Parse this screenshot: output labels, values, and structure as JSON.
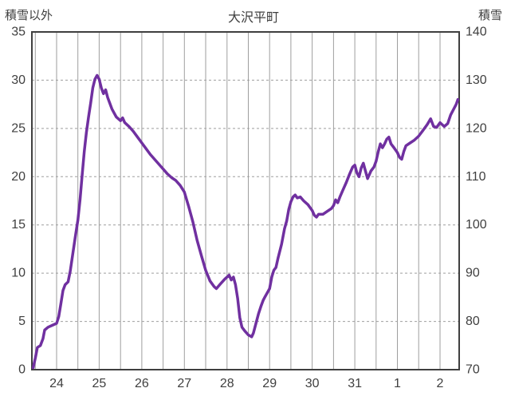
{
  "header": {
    "left_axis_title": "積雪以外",
    "chart_title": "大沢平町",
    "right_axis_title": "積雪"
  },
  "chart_data": {
    "type": "line",
    "title": "大沢平町",
    "legend": "none",
    "grid": {
      "vertical": "solid",
      "horizontal": "dashed"
    },
    "colors": {
      "line": "#7030A0",
      "grid": "#9e9e9e",
      "border": "#3f3f3f",
      "text": "#3f3f3f"
    },
    "left_axis": {
      "label": "積雪以外",
      "min": 0,
      "max": 35,
      "ticks": [
        0,
        5,
        10,
        15,
        20,
        25,
        30,
        35
      ]
    },
    "right_axis": {
      "label": "積雪",
      "min": 70,
      "max": 140,
      "ticks": [
        70,
        80,
        90,
        100,
        110,
        120,
        130,
        140
      ]
    },
    "x_axis": {
      "tick_labels": [
        "24",
        "25",
        "26",
        "27",
        "28",
        "29",
        "30",
        "31",
        "1",
        "2"
      ],
      "tick_positions": [
        24,
        25,
        26,
        27,
        28,
        29,
        30,
        31,
        32,
        33
      ],
      "min": 23.42,
      "max": 33.45,
      "minor_grid_step": 0.5
    },
    "series": [
      {
        "name": "積雪",
        "color": "#7030A0",
        "axis": "left",
        "x": [
          23.45,
          23.5,
          23.55,
          23.62,
          23.68,
          23.72,
          23.8,
          23.9,
          24.0,
          24.05,
          24.1,
          24.15,
          24.2,
          24.27,
          24.32,
          24.38,
          24.44,
          24.5,
          24.55,
          24.6,
          24.65,
          24.7,
          24.75,
          24.8,
          24.85,
          24.9,
          24.95,
          25.0,
          25.05,
          25.1,
          25.15,
          25.2,
          25.3,
          25.4,
          25.5,
          25.55,
          25.6,
          25.7,
          25.8,
          25.9,
          26.0,
          26.1,
          26.2,
          26.3,
          26.4,
          26.5,
          26.6,
          26.7,
          26.8,
          26.9,
          27.0,
          27.1,
          27.2,
          27.3,
          27.4,
          27.5,
          27.6,
          27.7,
          27.75,
          27.85,
          27.95,
          28.0,
          28.05,
          28.1,
          28.15,
          28.2,
          28.25,
          28.3,
          28.35,
          28.42,
          28.5,
          28.58,
          28.62,
          28.68,
          28.74,
          28.8,
          28.85,
          28.9,
          28.95,
          29.0,
          29.05,
          29.1,
          29.15,
          29.2,
          29.28,
          29.35,
          29.4,
          29.45,
          29.5,
          29.55,
          29.6,
          29.65,
          29.72,
          29.8,
          29.9,
          30.0,
          30.05,
          30.1,
          30.15,
          30.25,
          30.35,
          30.45,
          30.5,
          30.55,
          30.6,
          30.65,
          30.72,
          30.8,
          30.88,
          30.95,
          31.0,
          31.05,
          31.1,
          31.15,
          31.2,
          31.25,
          31.3,
          31.38,
          31.45,
          31.5,
          31.55,
          31.6,
          31.65,
          31.7,
          31.75,
          31.8,
          31.85,
          31.92,
          32.0,
          32.05,
          32.1,
          32.15,
          32.2,
          32.3,
          32.4,
          32.5,
          32.6,
          32.7,
          32.78,
          32.85,
          32.92,
          33.0,
          33.05,
          33.1,
          33.18,
          33.25,
          33.32,
          33.38,
          33.42
        ],
        "y": [
          0.2,
          1.2,
          2.3,
          2.5,
          3.2,
          4.1,
          4.4,
          4.6,
          4.8,
          5.5,
          6.8,
          8.2,
          8.8,
          9.1,
          10.2,
          12.0,
          13.8,
          15.5,
          17.6,
          20.2,
          22.6,
          24.6,
          26.2,
          27.6,
          29.2,
          30.1,
          30.5,
          30.1,
          29.2,
          28.6,
          29.0,
          28.2,
          27.0,
          26.2,
          25.8,
          26.1,
          25.6,
          25.2,
          24.7,
          24.1,
          23.5,
          22.9,
          22.3,
          21.8,
          21.3,
          20.8,
          20.3,
          19.9,
          19.6,
          19.1,
          18.4,
          16.9,
          15.3,
          13.4,
          11.8,
          10.3,
          9.2,
          8.6,
          8.4,
          8.9,
          9.4,
          9.6,
          9.8,
          9.3,
          9.6,
          8.8,
          7.4,
          5.4,
          4.4,
          4.0,
          3.6,
          3.4,
          3.8,
          4.8,
          5.8,
          6.6,
          7.2,
          7.6,
          8.0,
          8.4,
          9.6,
          10.3,
          10.6,
          11.6,
          13.0,
          14.6,
          15.4,
          16.6,
          17.4,
          17.9,
          18.1,
          17.8,
          17.9,
          17.5,
          17.1,
          16.5,
          16.0,
          15.8,
          16.1,
          16.1,
          16.4,
          16.7,
          17.0,
          17.6,
          17.3,
          17.9,
          18.6,
          19.4,
          20.3,
          21.0,
          21.2,
          20.4,
          20.0,
          20.9,
          21.4,
          20.6,
          19.8,
          20.6,
          21.0,
          21.6,
          22.6,
          23.4,
          23.0,
          23.4,
          23.9,
          24.1,
          23.4,
          23.0,
          22.5,
          22.0,
          21.8,
          22.6,
          23.2,
          23.5,
          23.8,
          24.2,
          24.8,
          25.4,
          26.0,
          25.2,
          25.1,
          25.6,
          25.4,
          25.2,
          25.5,
          26.4,
          27.0,
          27.5,
          28.0
        ]
      }
    ]
  }
}
